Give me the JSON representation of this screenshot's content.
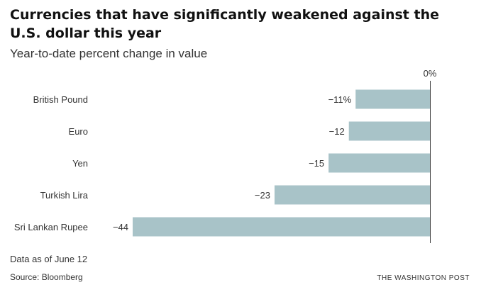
{
  "chart_data": {
    "type": "bar",
    "orientation": "horizontal",
    "title": "Currencies that have significantly weakened against the U.S. dollar this year",
    "subtitle": "Year-to-date percent change in value",
    "zero_label": "0%",
    "categories": [
      "British Pound",
      "Euro",
      "Yen",
      "Turkish Lira",
      "Sri Lankan Rupee"
    ],
    "values": [
      -11,
      -12,
      -15,
      -23,
      -44
    ],
    "value_labels": [
      "−11%",
      "−12",
      "−15",
      "−23",
      "−44"
    ],
    "xlim": [
      -44,
      0
    ],
    "bar_color": "#a8c3c8",
    "grid": false
  },
  "footer": {
    "note": "Data as of June 12",
    "source": "Source: Bloomberg",
    "credit": "THE WASHINGTON POST"
  }
}
